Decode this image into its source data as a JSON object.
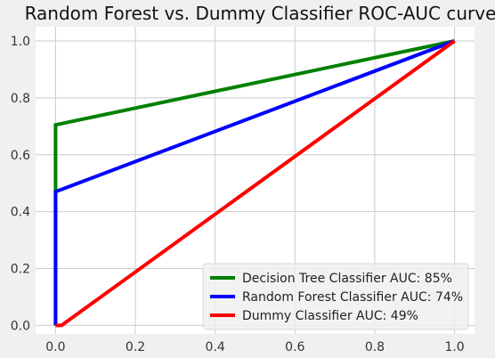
{
  "chart_data": {
    "type": "line",
    "title": "Random Forest vs. Dummy Classifier ROC-AUC curve",
    "xlabel": "",
    "ylabel": "",
    "xlim": [
      -0.05,
      1.05
    ],
    "ylim": [
      -0.03,
      1.05
    ],
    "xticks": [
      0.0,
      0.2,
      0.4,
      0.6,
      0.8,
      1.0
    ],
    "xtick_labels": [
      "0.0",
      "0.2",
      "0.4",
      "0.6",
      "0.8",
      "1.0"
    ],
    "yticks": [
      0.0,
      0.2,
      0.4,
      0.6,
      0.8,
      1.0
    ],
    "ytick_labels": [
      "0.0",
      "0.2",
      "0.4",
      "0.6",
      "0.8",
      "1.0"
    ],
    "grid": true,
    "legend_position": "lower-right",
    "series": [
      {
        "name": "Decision Tree Classifier AUC: 85%",
        "color": "#008000",
        "x": [
          0.0,
          0.0,
          0.0,
          1.0
        ],
        "y": [
          0.0,
          0.47,
          0.705,
          1.0
        ]
      },
      {
        "name": "Random Forest Classifier AUC: 74%",
        "color": "#0000ff",
        "x": [
          0.0,
          0.0,
          0.0,
          1.0
        ],
        "y": [
          0.0,
          0.0,
          0.47,
          1.0
        ]
      },
      {
        "name": "Dummy Classifier AUC: 49%",
        "color": "#ff0000",
        "x": [
          0.0,
          0.015,
          1.0
        ],
        "y": [
          0.0,
          0.0,
          1.0
        ]
      }
    ]
  }
}
